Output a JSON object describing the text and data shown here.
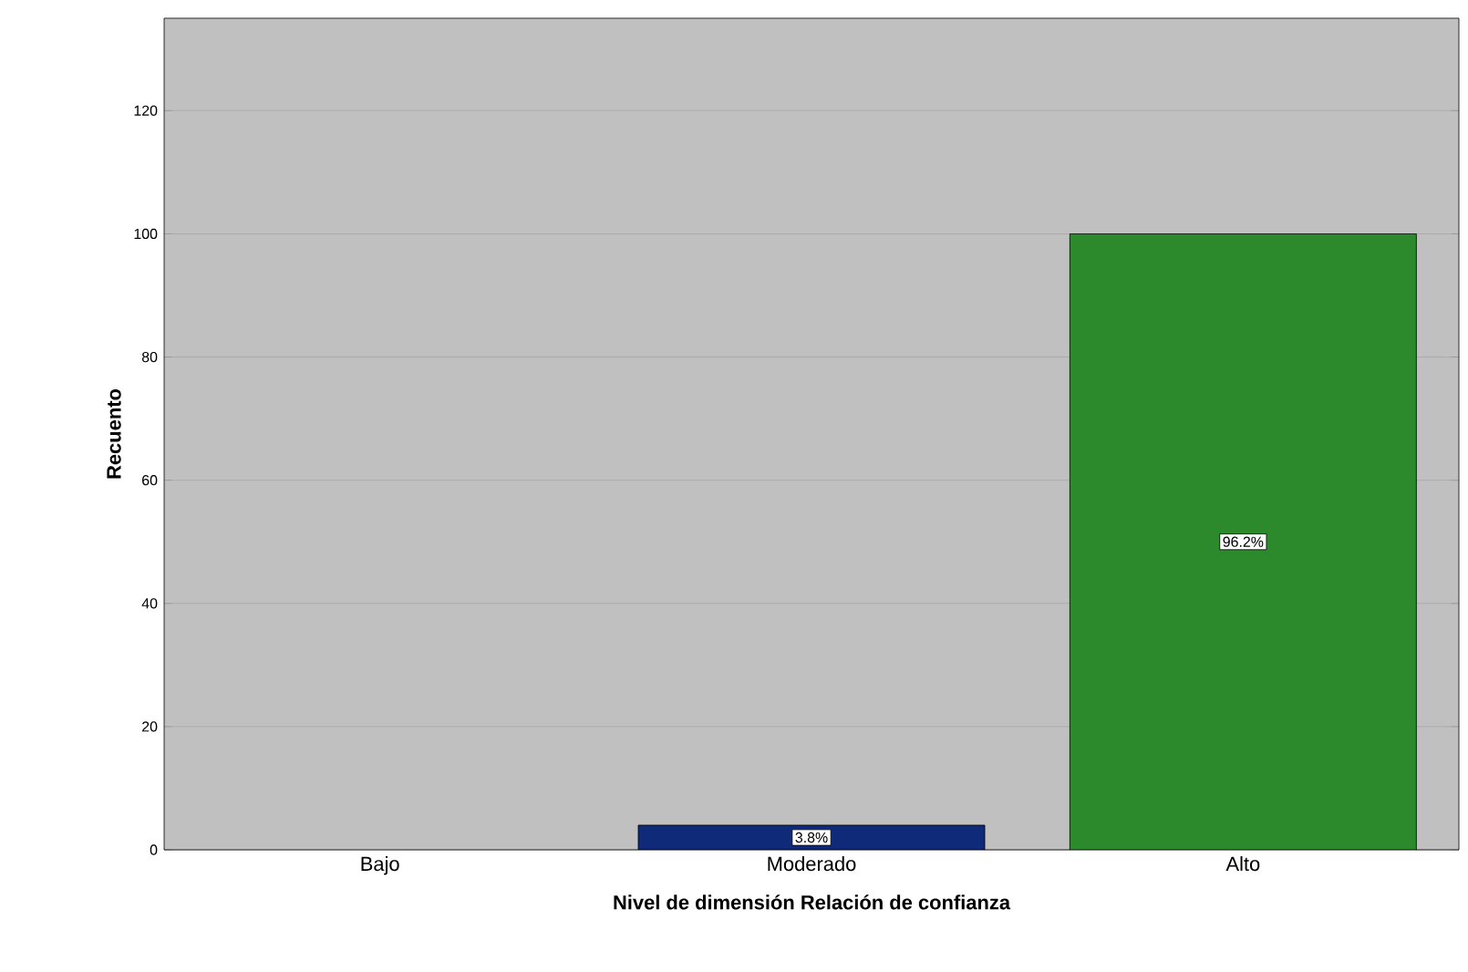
{
  "chart_data": {
    "type": "bar",
    "xlabel": "Nivel de dimensión Relación de confianza",
    "ylabel": "Recuento",
    "categories": [
      "Bajo",
      "Moderado",
      "Alto"
    ],
    "values": [
      0,
      4,
      100
    ],
    "colors": [
      null,
      "#0e2a78",
      "#2c8a2c"
    ],
    "annotations": [
      {
        "text": "3.8%",
        "x": "Moderado",
        "y": 2
      },
      {
        "text": "96.2%",
        "x": "Alto",
        "y": 50
      }
    ],
    "ylim": [
      0,
      135
    ],
    "yticks": [
      0,
      20,
      40,
      60,
      80,
      100,
      120
    ],
    "grid": "y",
    "legend": false
  }
}
